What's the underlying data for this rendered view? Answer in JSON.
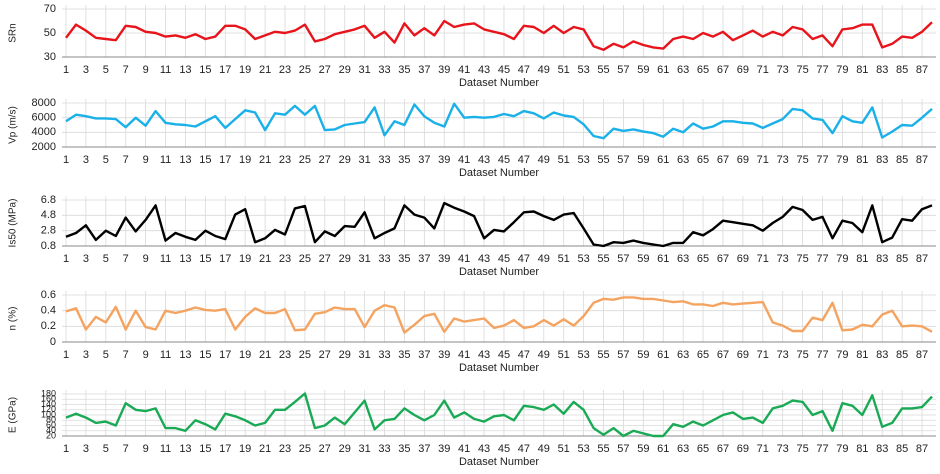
{
  "chart_data": [
    {
      "type": "line",
      "y_label": "SRn",
      "x_label": "Dataset Number",
      "color": "#e8141b",
      "x": [
        1,
        2,
        3,
        4,
        5,
        6,
        7,
        8,
        9,
        10,
        11,
        12,
        13,
        14,
        15,
        16,
        17,
        18,
        19,
        20,
        21,
        22,
        23,
        24,
        25,
        26,
        27,
        28,
        29,
        30,
        31,
        32,
        33,
        34,
        35,
        36,
        37,
        38,
        39,
        40,
        41,
        42,
        43,
        44,
        45,
        46,
        47,
        48,
        49,
        50,
        51,
        52,
        53,
        54,
        55,
        56,
        57,
        58,
        59,
        60,
        61,
        62,
        63,
        64,
        65,
        66,
        67,
        68,
        69,
        70,
        71,
        72,
        73,
        74,
        75,
        76,
        77,
        78,
        79,
        80,
        81,
        82,
        83,
        84,
        85,
        86,
        87,
        88
      ],
      "xlim": [
        1,
        88
      ],
      "xticks": [
        1,
        3,
        5,
        7,
        9,
        11,
        13,
        15,
        17,
        19,
        21,
        23,
        25,
        27,
        29,
        31,
        33,
        35,
        37,
        39,
        41,
        43,
        45,
        47,
        49,
        51,
        53,
        55,
        57,
        59,
        61,
        63,
        65,
        67,
        69,
        71,
        73,
        75,
        77,
        79,
        81,
        83,
        85,
        87
      ],
      "ylim": [
        30,
        70
      ],
      "yticks": [
        30,
        50,
        70
      ],
      "values": [
        46,
        57,
        52,
        46,
        45,
        44,
        56,
        55,
        51,
        50,
        47,
        48,
        46,
        49,
        45,
        47,
        56,
        56,
        53,
        45,
        48,
        51,
        50,
        52,
        57,
        43,
        45,
        49,
        51,
        53,
        56,
        46,
        51,
        42,
        58,
        48,
        54,
        48,
        60,
        55,
        57,
        58,
        53,
        51,
        49,
        45,
        56,
        55,
        50,
        56,
        50,
        55,
        53,
        39,
        36,
        41,
        38,
        43,
        40,
        38,
        37,
        45,
        47,
        45,
        50,
        47,
        51,
        44,
        48,
        52,
        47,
        51,
        48,
        55,
        53,
        45,
        48,
        39,
        53,
        54,
        57,
        57,
        38,
        41,
        47,
        46,
        51,
        59
      ]
    },
    {
      "type": "line",
      "y_label": "Vp (m/s)",
      "x_label": "Dataset Number",
      "color": "#1ab0e8",
      "x": [
        1,
        2,
        3,
        4,
        5,
        6,
        7,
        8,
        9,
        10,
        11,
        12,
        13,
        14,
        15,
        16,
        17,
        18,
        19,
        20,
        21,
        22,
        23,
        24,
        25,
        26,
        27,
        28,
        29,
        30,
        31,
        32,
        33,
        34,
        35,
        36,
        37,
        38,
        39,
        40,
        41,
        42,
        43,
        44,
        45,
        46,
        47,
        48,
        49,
        50,
        51,
        52,
        53,
        54,
        55,
        56,
        57,
        58,
        59,
        60,
        61,
        62,
        63,
        64,
        65,
        66,
        67,
        68,
        69,
        70,
        71,
        72,
        73,
        74,
        75,
        76,
        77,
        78,
        79,
        80,
        81,
        82,
        83,
        84,
        85,
        86,
        87,
        88
      ],
      "xlim": [
        1,
        88
      ],
      "xticks": [
        1,
        3,
        5,
        7,
        9,
        11,
        13,
        15,
        17,
        19,
        21,
        23,
        25,
        27,
        29,
        31,
        33,
        35,
        37,
        39,
        41,
        43,
        45,
        47,
        49,
        51,
        53,
        55,
        57,
        59,
        61,
        63,
        65,
        67,
        69,
        71,
        73,
        75,
        77,
        79,
        81,
        83,
        85,
        87
      ],
      "ylim": [
        2000,
        8000
      ],
      "yticks": [
        2000,
        4000,
        6000,
        8000
      ],
      "values": [
        5500,
        6400,
        6200,
        5900,
        5900,
        5800,
        4700,
        6000,
        4900,
        6900,
        5300,
        5100,
        5000,
        4800,
        5500,
        6200,
        4600,
        5800,
        7000,
        6700,
        4300,
        6600,
        6400,
        7600,
        6400,
        7600,
        4300,
        4400,
        5000,
        5200,
        5400,
        7400,
        3600,
        5500,
        5000,
        7800,
        6200,
        5300,
        4800,
        7900,
        6000,
        6100,
        6000,
        6100,
        6500,
        6200,
        6900,
        6600,
        5900,
        6700,
        6300,
        6100,
        5100,
        3500,
        3200,
        4500,
        4200,
        4400,
        4100,
        3900,
        3400,
        4500,
        4000,
        5200,
        4500,
        4800,
        5500,
        5500,
        5300,
        5200,
        4600,
        5200,
        5800,
        7200,
        7000,
        5900,
        5700,
        3900,
        6200,
        5500,
        5300,
        7400,
        3300,
        4100,
        5000,
        4900,
        6000,
        7200
      ]
    },
    {
      "type": "line",
      "y_label": "Is50 (MPa)",
      "x_label": "Dataset Number",
      "color": "#000000",
      "x": [
        1,
        2,
        3,
        4,
        5,
        6,
        7,
        8,
        9,
        10,
        11,
        12,
        13,
        14,
        15,
        16,
        17,
        18,
        19,
        20,
        21,
        22,
        23,
        24,
        25,
        26,
        27,
        28,
        29,
        30,
        31,
        32,
        33,
        34,
        35,
        36,
        37,
        38,
        39,
        40,
        41,
        42,
        43,
        44,
        45,
        46,
        47,
        48,
        49,
        50,
        51,
        52,
        53,
        54,
        55,
        56,
        57,
        58,
        59,
        60,
        61,
        62,
        63,
        64,
        65,
        66,
        67,
        68,
        69,
        70,
        71,
        72,
        73,
        74,
        75,
        76,
        77,
        78,
        79,
        80,
        81,
        82,
        83,
        84,
        85,
        86,
        87,
        88
      ],
      "xlim": [
        1,
        88
      ],
      "xticks": [
        1,
        3,
        5,
        7,
        9,
        11,
        13,
        15,
        17,
        19,
        21,
        23,
        25,
        27,
        29,
        31,
        33,
        35,
        37,
        39,
        41,
        43,
        45,
        47,
        49,
        51,
        53,
        55,
        57,
        59,
        61,
        63,
        65,
        67,
        69,
        71,
        73,
        75,
        77,
        79,
        81,
        83,
        85,
        87
      ],
      "ylim": [
        0.8,
        6.8
      ],
      "yticks": [
        0.8,
        2.8,
        4.8,
        6.8
      ],
      "values": [
        2.0,
        2.5,
        3.5,
        1.6,
        2.8,
        2.1,
        4.5,
        2.7,
        4.2,
        6.1,
        1.5,
        2.5,
        2.0,
        1.6,
        2.8,
        2.1,
        1.7,
        4.9,
        5.6,
        1.3,
        1.8,
        2.9,
        2.3,
        5.7,
        6.0,
        1.3,
        2.7,
        2.1,
        3.4,
        3.3,
        5.2,
        1.8,
        2.5,
        3.1,
        6.1,
        4.9,
        4.5,
        3.1,
        6.4,
        5.8,
        5.3,
        4.7,
        1.8,
        2.9,
        2.7,
        3.9,
        5.2,
        5.3,
        4.7,
        4.2,
        4.9,
        5.1,
        3.1,
        1.0,
        0.8,
        1.3,
        1.2,
        1.5,
        1.2,
        1.0,
        0.8,
        1.2,
        1.2,
        2.6,
        2.2,
        3.0,
        4.1,
        3.9,
        3.7,
        3.5,
        2.8,
        3.8,
        4.6,
        5.9,
        5.5,
        4.2,
        4.6,
        1.8,
        4.1,
        3.8,
        2.6,
        6.1,
        1.3,
        1.9,
        4.3,
        4.1,
        5.6,
        6.1
      ]
    },
    {
      "type": "line",
      "y_label": "n (%)",
      "x_label": "Dataset Number",
      "color": "#f4a460",
      "x": [
        1,
        2,
        3,
        4,
        5,
        6,
        7,
        8,
        9,
        10,
        11,
        12,
        13,
        14,
        15,
        16,
        17,
        18,
        19,
        20,
        21,
        22,
        23,
        24,
        25,
        26,
        27,
        28,
        29,
        30,
        31,
        32,
        33,
        34,
        35,
        36,
        37,
        38,
        39,
        40,
        41,
        42,
        43,
        44,
        45,
        46,
        47,
        48,
        49,
        50,
        51,
        52,
        53,
        54,
        55,
        56,
        57,
        58,
        59,
        60,
        61,
        62,
        63,
        64,
        65,
        66,
        67,
        68,
        69,
        70,
        71,
        72,
        73,
        74,
        75,
        76,
        77,
        78,
        79,
        80,
        81,
        82,
        83,
        84,
        85,
        86,
        87,
        88
      ],
      "xlim": [
        1,
        88
      ],
      "xticks": [
        1,
        3,
        5,
        7,
        9,
        11,
        13,
        15,
        17,
        19,
        21,
        23,
        25,
        27,
        29,
        31,
        33,
        35,
        37,
        39,
        41,
        43,
        45,
        47,
        49,
        51,
        53,
        55,
        57,
        59,
        61,
        63,
        65,
        67,
        69,
        71,
        73,
        75,
        77,
        79,
        81,
        83,
        85,
        87
      ],
      "ylim": [
        0,
        0.6
      ],
      "yticks": [
        0,
        0.2,
        0.4,
        0.6
      ],
      "values": [
        0.39,
        0.43,
        0.16,
        0.32,
        0.25,
        0.45,
        0.16,
        0.4,
        0.19,
        0.16,
        0.4,
        0.37,
        0.4,
        0.44,
        0.41,
        0.4,
        0.42,
        0.16,
        0.32,
        0.43,
        0.37,
        0.37,
        0.42,
        0.15,
        0.16,
        0.36,
        0.38,
        0.44,
        0.42,
        0.42,
        0.19,
        0.4,
        0.47,
        0.44,
        0.12,
        0.22,
        0.33,
        0.36,
        0.13,
        0.3,
        0.26,
        0.28,
        0.3,
        0.18,
        0.21,
        0.28,
        0.18,
        0.2,
        0.28,
        0.21,
        0.29,
        0.21,
        0.33,
        0.5,
        0.55,
        0.54,
        0.57,
        0.57,
        0.55,
        0.55,
        0.53,
        0.51,
        0.52,
        0.48,
        0.48,
        0.46,
        0.5,
        0.48,
        0.49,
        0.5,
        0.51,
        0.25,
        0.21,
        0.14,
        0.14,
        0.31,
        0.28,
        0.5,
        0.15,
        0.16,
        0.22,
        0.2,
        0.35,
        0.4,
        0.2,
        0.21,
        0.2,
        0.13
      ]
    },
    {
      "type": "line",
      "y_label": "E (GPa)",
      "x_label": "Dataset Number",
      "color": "#1aaa55",
      "x": [
        1,
        2,
        3,
        4,
        5,
        6,
        7,
        8,
        9,
        10,
        11,
        12,
        13,
        14,
        15,
        16,
        17,
        18,
        19,
        20,
        21,
        22,
        23,
        24,
        25,
        26,
        27,
        28,
        29,
        30,
        31,
        32,
        33,
        34,
        35,
        36,
        37,
        38,
        39,
        40,
        41,
        42,
        43,
        44,
        45,
        46,
        47,
        48,
        49,
        50,
        51,
        52,
        53,
        54,
        55,
        56,
        57,
        58,
        59,
        60,
        61,
        62,
        63,
        64,
        65,
        66,
        67,
        68,
        69,
        70,
        71,
        72,
        73,
        74,
        75,
        76,
        77,
        78,
        79,
        80,
        81,
        82,
        83,
        84,
        85,
        86,
        87,
        88
      ],
      "xlim": [
        1,
        88
      ],
      "xticks": [
        1,
        3,
        5,
        7,
        9,
        11,
        13,
        15,
        17,
        19,
        21,
        23,
        25,
        27,
        29,
        31,
        33,
        35,
        37,
        39,
        41,
        43,
        45,
        47,
        49,
        51,
        53,
        55,
        57,
        59,
        61,
        63,
        65,
        67,
        69,
        71,
        73,
        75,
        77,
        79,
        81,
        83,
        85,
        87
      ],
      "ylim": [
        20,
        180
      ],
      "yticks": [
        20,
        40,
        60,
        80,
        100,
        120,
        140,
        160,
        180
      ],
      "values": [
        90,
        105,
        90,
        70,
        75,
        60,
        145,
        120,
        115,
        125,
        50,
        50,
        40,
        80,
        65,
        45,
        105,
        95,
        80,
        60,
        70,
        120,
        120,
        150,
        182,
        50,
        60,
        90,
        65,
        110,
        155,
        45,
        80,
        85,
        125,
        100,
        80,
        100,
        155,
        90,
        110,
        85,
        75,
        95,
        100,
        80,
        135,
        130,
        120,
        140,
        105,
        150,
        120,
        50,
        25,
        50,
        20,
        40,
        30,
        20,
        20,
        65,
        55,
        75,
        60,
        80,
        100,
        110,
        85,
        90,
        70,
        125,
        135,
        155,
        150,
        100,
        115,
        40,
        145,
        135,
        100,
        175,
        55,
        70,
        125,
        125,
        130,
        170
      ]
    }
  ]
}
